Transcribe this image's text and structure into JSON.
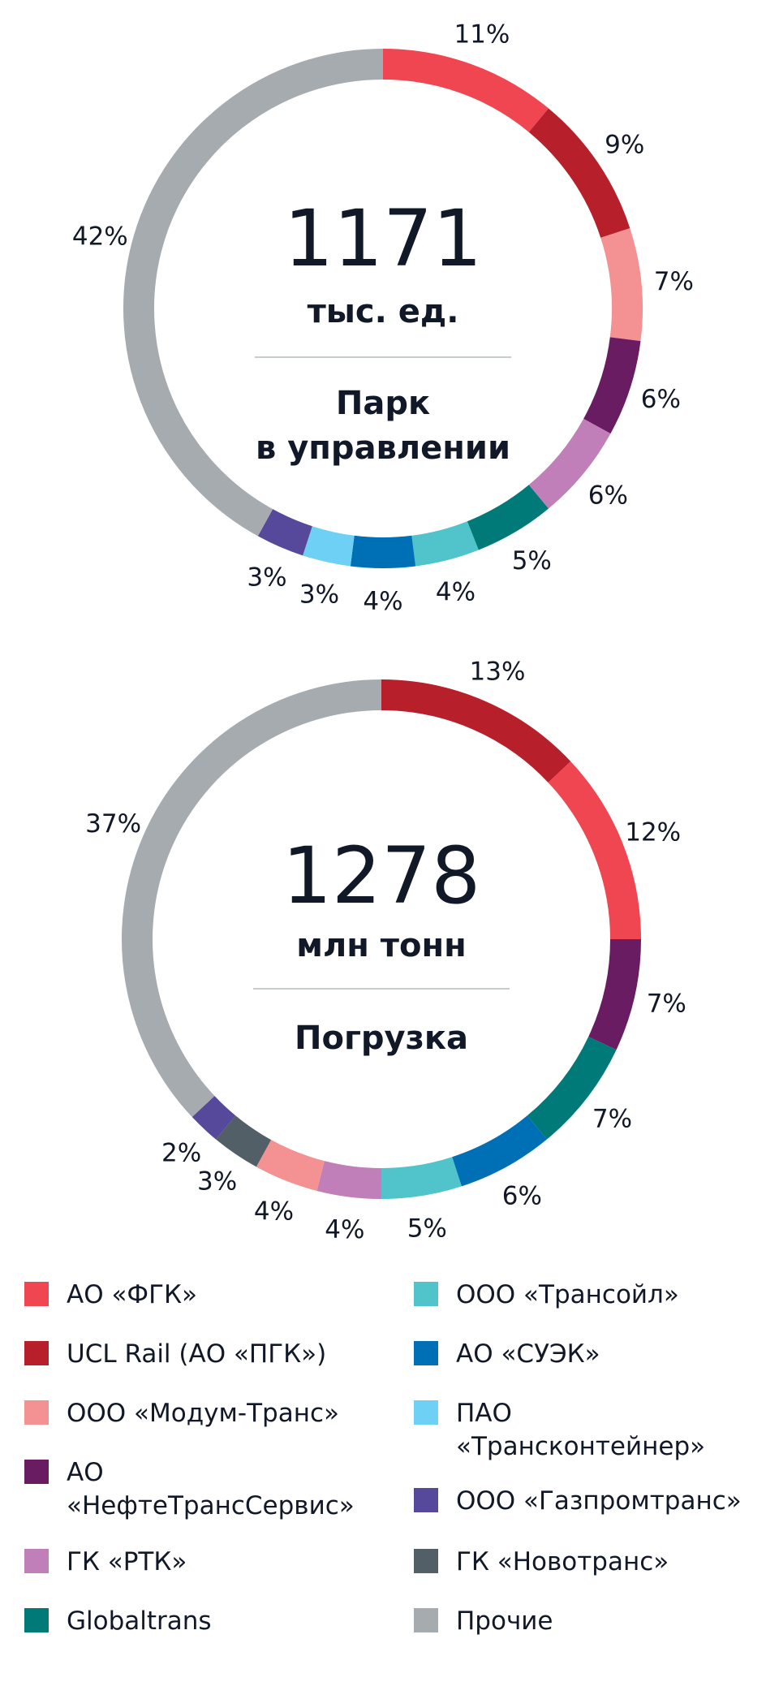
{
  "colors": {
    "fgk": "#EF4651",
    "ucl": "#B71F2A",
    "modum": "#F39193",
    "nts": "#6A1C63",
    "rtk": "#C07FB8",
    "globaltrans": "#007A78",
    "transoil": "#50C3CB",
    "suek": "#0070B6",
    "transcont": "#6FD0F5",
    "gazprom": "#56489A",
    "novotrans": "#535F67",
    "other": "#A6ABAF",
    "divider": "#C7CCCF",
    "text": "#111827"
  },
  "chart_data": [
    {
      "type": "pie",
      "center_value": "1171",
      "center_unit": "тыс. ед.",
      "center_title_lines": [
        "Парк",
        "в управлении"
      ],
      "slices": [
        {
          "key": "fgk",
          "value": 11,
          "label": "11%"
        },
        {
          "key": "ucl",
          "value": 9,
          "label": "9%"
        },
        {
          "key": "modum",
          "value": 7,
          "label": "7%"
        },
        {
          "key": "nts",
          "value": 6,
          "label": "6%"
        },
        {
          "key": "rtk",
          "value": 6,
          "label": "6%"
        },
        {
          "key": "globaltrans",
          "value": 5,
          "label": "5%"
        },
        {
          "key": "transoil",
          "value": 4,
          "label": "4%"
        },
        {
          "key": "suek",
          "value": 4,
          "label": "4%"
        },
        {
          "key": "transcont",
          "value": 3,
          "label": "3%"
        },
        {
          "key": "gazprom",
          "value": 3,
          "label": "3%"
        },
        {
          "key": "other",
          "value": 42,
          "label": "42%"
        }
      ]
    },
    {
      "type": "pie",
      "center_value": "1278",
      "center_unit": "млн тонн",
      "center_title_lines": [
        "Погрузка"
      ],
      "slices": [
        {
          "key": "ucl",
          "value": 13,
          "label": "13%"
        },
        {
          "key": "fgk",
          "value": 12,
          "label": "12%"
        },
        {
          "key": "nts",
          "value": 7,
          "label": "7%"
        },
        {
          "key": "globaltrans",
          "value": 7,
          "label": "7%"
        },
        {
          "key": "suek",
          "value": 6,
          "label": "6%"
        },
        {
          "key": "transoil",
          "value": 5,
          "label": "5%"
        },
        {
          "key": "rtk",
          "value": 4,
          "label": "4%"
        },
        {
          "key": "modum",
          "value": 4,
          "label": "4%"
        },
        {
          "key": "novotrans",
          "value": 3,
          "label": "3%"
        },
        {
          "key": "gazprom",
          "value": 2,
          "label": "2%"
        },
        {
          "key": "other",
          "value": 37,
          "label": "37%"
        }
      ]
    }
  ],
  "legend": {
    "left": [
      {
        "key": "fgk",
        "lines": [
          "АО «ФГК»"
        ]
      },
      {
        "key": "ucl",
        "lines": [
          "UCL Rail (АО «ПГК»)"
        ]
      },
      {
        "key": "modum",
        "lines": [
          "ООО «Модум-Транс»"
        ]
      },
      {
        "key": "nts",
        "lines": [
          "АО",
          "«НефтеТрансСервис»"
        ]
      },
      {
        "key": "rtk",
        "lines": [
          "ГК «РТК»"
        ]
      },
      {
        "key": "globaltrans",
        "lines": [
          "Globaltrans"
        ]
      }
    ],
    "right": [
      {
        "key": "transoil",
        "lines": [
          "ООО «Трансойл»"
        ]
      },
      {
        "key": "suek",
        "lines": [
          "АО «СУЭК»"
        ]
      },
      {
        "key": "transcont",
        "lines": [
          "ПАО",
          "«Трансконтейнер»"
        ]
      },
      {
        "key": "gazprom",
        "lines": [
          "ООО «Газпромтранс»"
        ]
      },
      {
        "key": "novotrans",
        "lines": [
          "ГК «Новотранс»"
        ]
      },
      {
        "key": "other",
        "lines": [
          "Прочие"
        ]
      }
    ]
  }
}
